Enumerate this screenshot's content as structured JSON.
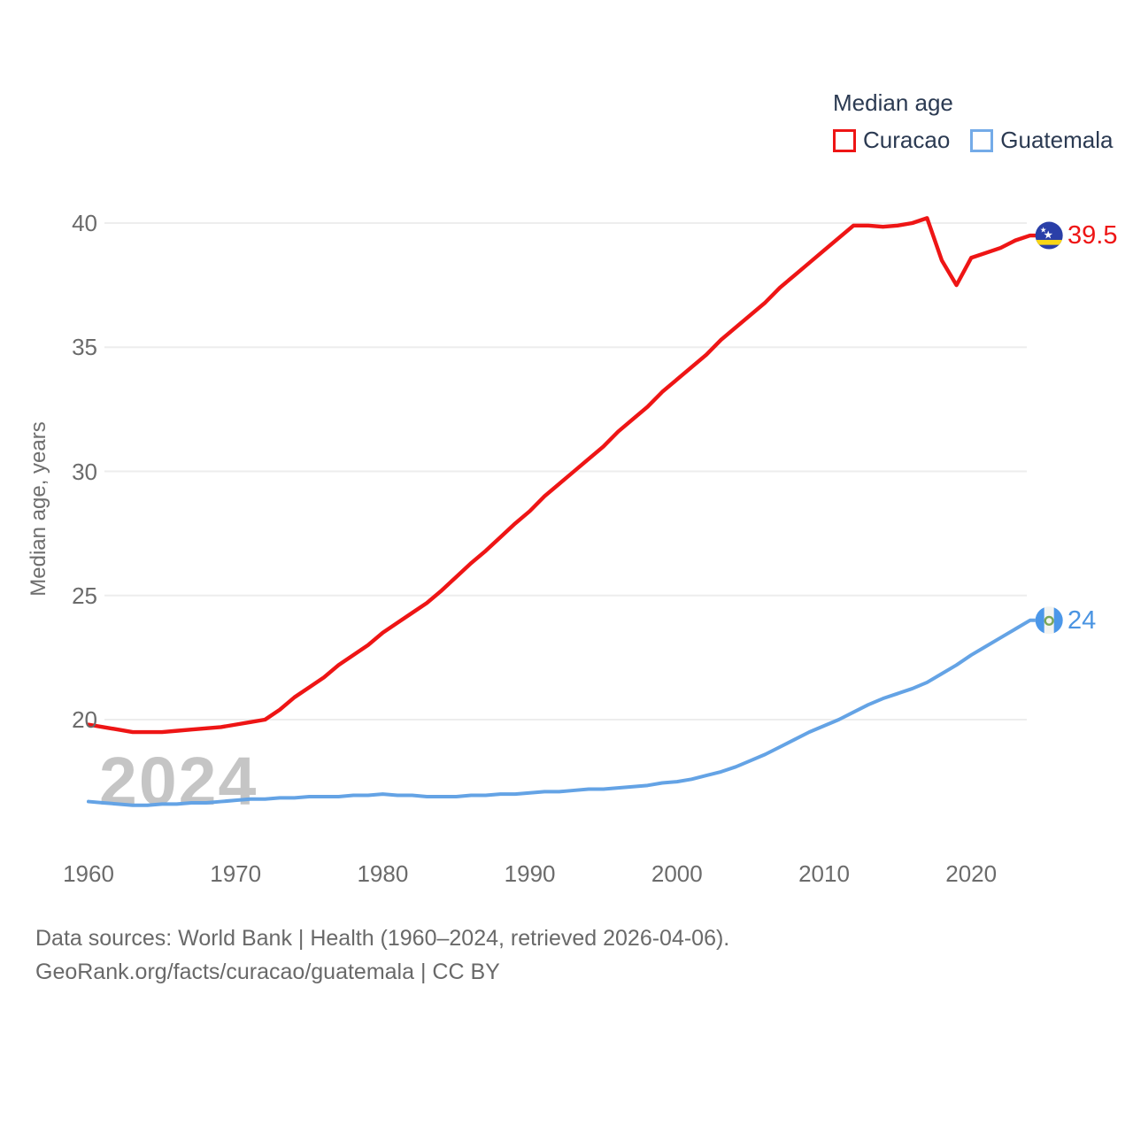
{
  "legend": {
    "title": "Median age",
    "items": [
      {
        "label": "Curacao",
        "color": "#ee1515"
      },
      {
        "label": "Guatemala",
        "color": "#64a3e5"
      }
    ]
  },
  "y_axis": {
    "label": "Median age, years"
  },
  "watermark": "2024",
  "end_labels": [
    {
      "series": "Curacao",
      "value": "39.5",
      "color": "#ee1515"
    },
    {
      "series": "Guatemala",
      "value": "24",
      "color": "#4a94e2"
    }
  ],
  "footer": {
    "line1": "Data sources: World Bank | Health (1960–2024, retrieved 2026-04-06).",
    "line2": "GeoRank.org/facts/curacao/guatemala | CC BY"
  },
  "chart_data": {
    "type": "line",
    "title": "Median age",
    "xlabel": "",
    "ylabel": "Median age, years",
    "x_range": [
      1960,
      2024
    ],
    "ylim": [
      16,
      41
    ],
    "x_ticks": [
      1960,
      1970,
      1980,
      1990,
      2000,
      2010,
      2020
    ],
    "y_ticks": [
      20,
      25,
      30,
      35,
      40
    ],
    "grid": "horizontal",
    "legend_position": "top-right",
    "x": [
      1960,
      1961,
      1962,
      1963,
      1964,
      1965,
      1966,
      1967,
      1968,
      1969,
      1970,
      1971,
      1972,
      1973,
      1974,
      1975,
      1976,
      1977,
      1978,
      1979,
      1980,
      1981,
      1982,
      1983,
      1984,
      1985,
      1986,
      1987,
      1988,
      1989,
      1990,
      1991,
      1992,
      1993,
      1994,
      1995,
      1996,
      1997,
      1998,
      1999,
      2000,
      2001,
      2002,
      2003,
      2004,
      2005,
      2006,
      2007,
      2008,
      2009,
      2010,
      2011,
      2012,
      2013,
      2014,
      2015,
      2016,
      2017,
      2018,
      2019,
      2020,
      2021,
      2022,
      2023,
      2024
    ],
    "series": [
      {
        "name": "Curacao",
        "color": "#ee1515",
        "stroke_width": 4.4,
        "end_value": 39.5,
        "values": [
          19.8,
          19.7,
          19.6,
          19.5,
          19.5,
          19.5,
          19.55,
          19.6,
          19.65,
          19.7,
          19.8,
          19.9,
          20.0,
          20.4,
          20.9,
          21.3,
          21.7,
          22.2,
          22.6,
          23.0,
          23.5,
          23.9,
          24.3,
          24.7,
          25.2,
          25.75,
          26.3,
          26.8,
          27.35,
          27.9,
          28.4,
          29.0,
          29.5,
          30.0,
          30.5,
          31.0,
          31.6,
          32.1,
          32.6,
          33.2,
          33.7,
          34.2,
          34.7,
          35.3,
          35.8,
          36.3,
          36.8,
          37.4,
          37.9,
          38.4,
          38.9,
          39.4,
          39.9,
          39.9,
          39.85,
          39.9,
          40.0,
          40.2,
          38.5,
          37.5,
          38.6,
          38.8,
          39.0,
          39.3,
          39.5
        ]
      },
      {
        "name": "Guatemala",
        "color": "#64a3e5",
        "stroke_width": 4.0,
        "end_value": 24,
        "values": [
          16.7,
          16.65,
          16.6,
          16.55,
          16.55,
          16.6,
          16.6,
          16.65,
          16.65,
          16.7,
          16.75,
          16.8,
          16.8,
          16.85,
          16.85,
          16.9,
          16.9,
          16.9,
          16.95,
          16.95,
          17.0,
          16.95,
          16.95,
          16.9,
          16.9,
          16.9,
          16.95,
          16.95,
          17.0,
          17.0,
          17.05,
          17.1,
          17.1,
          17.15,
          17.2,
          17.2,
          17.25,
          17.3,
          17.35,
          17.45,
          17.5,
          17.6,
          17.75,
          17.9,
          18.1,
          18.35,
          18.6,
          18.9,
          19.2,
          19.5,
          19.75,
          20.0,
          20.3,
          20.6,
          20.85,
          21.05,
          21.25,
          21.5,
          21.85,
          22.2,
          22.6,
          22.95,
          23.3,
          23.65,
          24.0
        ]
      }
    ]
  }
}
